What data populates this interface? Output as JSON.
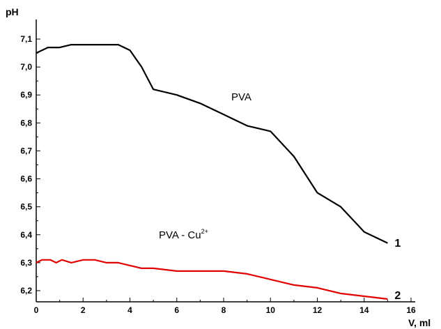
{
  "chart_data": {
    "type": "line",
    "xlabel": "V, ml",
    "ylabel": "pH",
    "xlim": [
      0,
      16
    ],
    "ylim": [
      6.16,
      7.14
    ],
    "x_ticks": [
      "0",
      "2",
      "4",
      "6",
      "8",
      "10",
      "12",
      "14",
      "16"
    ],
    "y_ticks": [
      "6,2",
      "6,3",
      "6,4",
      "6,5",
      "6,6",
      "6,7",
      "6,8",
      "6,9",
      "7,0",
      "7,1"
    ],
    "grid": false,
    "annotations": {
      "pva": "PVA",
      "pva_cu_base": "PVA - Cu",
      "pva_cu_sup": "2+"
    },
    "series": [
      {
        "name": "1",
        "color": "#000000",
        "x": [
          0,
          0.5,
          1,
          1.5,
          2,
          2.5,
          3,
          3.5,
          4,
          4.5,
          5,
          6,
          7,
          8,
          9,
          10,
          11,
          12,
          13,
          14,
          15
        ],
        "y": [
          7.05,
          7.07,
          7.07,
          7.08,
          7.08,
          7.08,
          7.08,
          7.08,
          7.06,
          7.0,
          6.92,
          6.9,
          6.87,
          6.83,
          6.79,
          6.77,
          6.68,
          6.55,
          6.5,
          6.41,
          6.37
        ]
      },
      {
        "name": "2",
        "color": "#e00000",
        "x": [
          0,
          0.25,
          0.6,
          0.85,
          1.1,
          1.5,
          2,
          2.5,
          3,
          3.5,
          4,
          4.5,
          5,
          6,
          7,
          8,
          9,
          10,
          11,
          12,
          13,
          14,
          15
        ],
        "y": [
          6.3,
          6.31,
          6.31,
          6.3,
          6.31,
          6.3,
          6.31,
          6.31,
          6.3,
          6.3,
          6.29,
          6.28,
          6.28,
          6.27,
          6.27,
          6.27,
          6.26,
          6.24,
          6.22,
          6.21,
          6.19,
          6.18,
          6.17
        ]
      }
    ]
  }
}
